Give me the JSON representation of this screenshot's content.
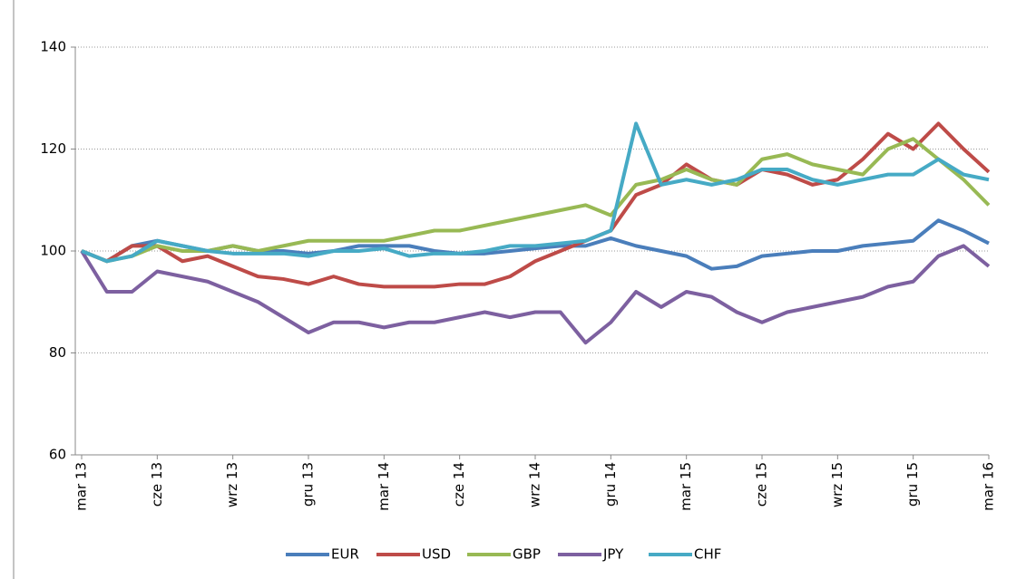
{
  "chart_data": {
    "type": "line",
    "categories": [
      "mar 13",
      null,
      null,
      "cze 13",
      null,
      null,
      "wrz 13",
      null,
      null,
      "gru 13",
      null,
      null,
      "mar 14",
      null,
      null,
      "cze 14",
      null,
      null,
      "wrz 14",
      null,
      null,
      "gru 14",
      null,
      null,
      "mar 15",
      null,
      null,
      "cze 15",
      null,
      null,
      "wrz 15",
      null,
      null,
      "gru 15",
      null,
      null,
      "mar 16"
    ],
    "series": [
      {
        "name": "EUR",
        "color": "#4a7ebb",
        "values": [
          100,
          98,
          101,
          102,
          101,
          100,
          101,
          100,
          100,
          99.5,
          100,
          101,
          101,
          101,
          100,
          99.5,
          99.5,
          100,
          100.5,
          101,
          101,
          102.5,
          101,
          100,
          99,
          96.5,
          97,
          99,
          99.5,
          100,
          100,
          101,
          101.5,
          102,
          106,
          104,
          101.5
        ]
      },
      {
        "name": "USD",
        "color": "#be4b48",
        "values": [
          100,
          98,
          101,
          101,
          98,
          99,
          97,
          95,
          94.5,
          93.5,
          95,
          93.5,
          93,
          93,
          93,
          93.5,
          93.5,
          95,
          98,
          100,
          102,
          104,
          111,
          113,
          117,
          114,
          113,
          116,
          115,
          113,
          114,
          118,
          123,
          120,
          125,
          120,
          115.5
        ]
      },
      {
        "name": "GBP",
        "color": "#98b954",
        "values": [
          100,
          98,
          99,
          101,
          100,
          100,
          101,
          100,
          101,
          102,
          102,
          102,
          102,
          103,
          104,
          104,
          105,
          106,
          107,
          108,
          109,
          107,
          113,
          114,
          116,
          114,
          113,
          118,
          119,
          117,
          116,
          115,
          120,
          122,
          118,
          114,
          109
        ]
      },
      {
        "name": "JPY",
        "color": "#7d60a0",
        "values": [
          100,
          92,
          92,
          96,
          95,
          94,
          92,
          90,
          87,
          84,
          86,
          86,
          85,
          86,
          86,
          87,
          88,
          87,
          88,
          88,
          82,
          86,
          92,
          89,
          92,
          91,
          88,
          86,
          88,
          89,
          90,
          91,
          93,
          94,
          99,
          101,
          97
        ]
      },
      {
        "name": "CHF",
        "color": "#46aac5",
        "values": [
          100,
          98,
          99,
          102,
          101,
          100,
          99.5,
          99.5,
          99.5,
          99,
          100,
          100,
          100.5,
          99,
          99.5,
          99.5,
          100,
          101,
          101,
          101.5,
          102,
          104,
          125,
          113,
          114,
          113,
          114,
          116,
          116,
          114,
          113,
          114,
          115,
          115,
          118,
          115,
          114
        ]
      }
    ],
    "ylim": [
      60,
      140
    ],
    "yticks": [
      60,
      80,
      100,
      120,
      140
    ],
    "grid": true,
    "legend": "bottom"
  }
}
